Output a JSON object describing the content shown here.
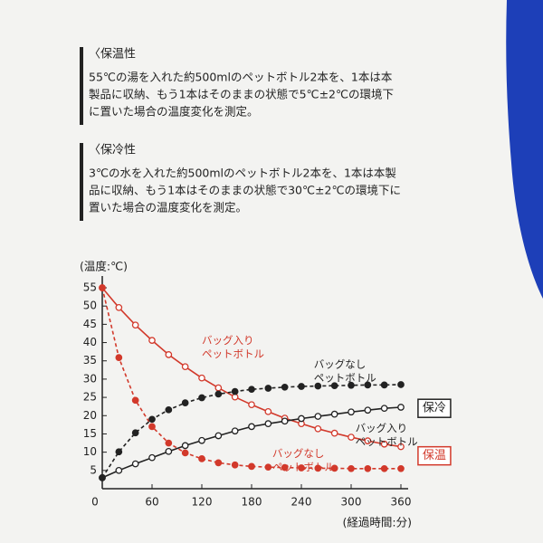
{
  "sections": [
    {
      "heading": "〈保温性",
      "lines": [
        "55℃の湯を入れた約500mlのペットボトル2本を、1本は本",
        "製品に収納、もう1本はそのままの状態で5℃±2℃の環境下",
        "に置いた場合の温度変化を測定。"
      ]
    },
    {
      "heading": "〈保冷性",
      "lines": [
        "3℃の水を入れた約500mlのペットボトル2本を、1本は本製",
        "品に収納、もう1本はそのままの状態で30℃±2℃の環境下に",
        "置いた場合の温度変化を測定。"
      ]
    }
  ],
  "chart_data": {
    "type": "line",
    "y_label": "(温度:℃)",
    "x_label": "(経過時間:分)",
    "x": [
      0,
      20,
      40,
      60,
      80,
      100,
      120,
      140,
      160,
      180,
      200,
      220,
      240,
      260,
      280,
      300,
      320,
      340,
      360
    ],
    "xlim": [
      0,
      360
    ],
    "xticks": [
      0,
      60,
      120,
      180,
      240,
      300,
      360
    ],
    "ylim": [
      0,
      55
    ],
    "yticks": [
      5,
      10,
      15,
      20,
      25,
      30,
      35,
      40,
      45,
      50,
      55
    ],
    "series": [
      {
        "color": "#d2392b",
        "style": "solid",
        "values": [
          55,
          49.6,
          44.8,
          40.6,
          36.7,
          33.4,
          30.3,
          27.6,
          25.1,
          23.0,
          21.1,
          19.3,
          17.8,
          16.4,
          15.2,
          14.1,
          13.1,
          12.2,
          11.5
        ]
      },
      {
        "color": "#d2392b",
        "style": "dashed",
        "values": [
          55,
          35.9,
          24.2,
          17.0,
          12.5,
          9.8,
          8.2,
          7.1,
          6.5,
          6.1,
          5.9,
          5.8,
          5.7,
          5.6,
          5.6,
          5.5,
          5.5,
          5.5,
          5.5
        ]
      },
      {
        "color": "#222222",
        "style": "solid",
        "values": [
          3,
          5,
          6.8,
          8.5,
          10.2,
          11.8,
          13.2,
          14.5,
          15.8,
          17,
          17.8,
          18.5,
          19.2,
          19.8,
          20.4,
          21,
          21.5,
          22,
          22.3
        ]
      },
      {
        "color": "#222222",
        "style": "dashed",
        "values": [
          3,
          10.1,
          15.3,
          19.0,
          21.6,
          23.5,
          24.9,
          25.9,
          26.6,
          27.2,
          27.5,
          27.8,
          28.0,
          28.1,
          28.2,
          28.3,
          28.4,
          28.4,
          28.5
        ]
      }
    ],
    "annotations": [
      {
        "lines": [
          "バッグ入り",
          "ペットボトル"
        ],
        "color": "#d2392b",
        "at": [
          120,
          40.5
        ]
      },
      {
        "lines": [
          "バッグなし",
          "ペットボトル"
        ],
        "color": "#222222",
        "at": [
          255,
          34
        ]
      },
      {
        "lines": [
          "バッグ入り",
          "ペットボトル"
        ],
        "color": "#222222",
        "at": [
          305,
          16.5
        ]
      },
      {
        "lines": [
          "バッグなし",
          "ペットボトル"
        ],
        "color": "#d2392b",
        "at": [
          205,
          9.5
        ]
      }
    ],
    "boxed_labels": [
      {
        "text": "保冷",
        "color": "#222222",
        "at": [
          385,
          22
        ]
      },
      {
        "text": "保温",
        "color": "#d2392b",
        "at": [
          385,
          9
        ]
      }
    ]
  }
}
